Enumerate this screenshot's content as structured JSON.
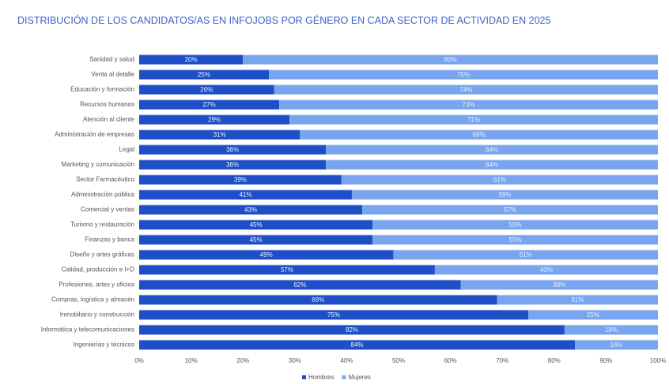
{
  "chart_data": {
    "type": "stacked_bar_horizontal",
    "title": "DISTRIBUCIÓN DE LOS CANDIDATOS/AS EN INFOJOBS POR GÉNERO EN CADA SECTOR DE ACTIVIDAD EN 2025",
    "categories": [
      "Sanidad y salud",
      "Venta al detalle",
      "Educación y formación",
      "Recursos humanos",
      "Atención al cliente",
      "Administración de empresas",
      "Legal",
      "Marketing y comunicación",
      "Sector Farmacéutico",
      "Administración pública",
      "Comercial y ventas",
      "Turismo y restauración",
      "Finanzas y banca",
      "Diseño y artes gráficas",
      "Calidad, producción e I+D",
      "Profesiones, artes y oficios",
      "Compras, logística y almacén",
      "Inmobiliario y construcción",
      "Informática y telecomunicaciones",
      "Ingenierías y técnicos"
    ],
    "series": [
      {
        "name": "Hombres",
        "color": "#1f4fc6",
        "values": [
          20,
          25,
          26,
          27,
          29,
          31,
          36,
          36,
          39,
          41,
          43,
          45,
          45,
          49,
          57,
          62,
          69,
          75,
          82,
          84
        ],
        "value_labels": [
          "20%",
          "25%",
          "26%",
          "27%",
          "29%",
          "31%",
          "36%",
          "36%",
          "39%",
          "41%",
          "43%",
          "45%",
          "45%",
          "49%",
          "57%",
          "62%",
          "69%",
          "75%",
          "82%",
          "84%"
        ]
      },
      {
        "name": "Mujeres",
        "color": "#78a5ee",
        "values": [
          80,
          75,
          74,
          73,
          71,
          69,
          64,
          64,
          61,
          59,
          57,
          55,
          55,
          51,
          43,
          38,
          31,
          25,
          18,
          16
        ],
        "value_labels": [
          "80%",
          "75%",
          "74%",
          "73%",
          "71%",
          "69%",
          "64%",
          "64%",
          "61%",
          "59%",
          "57%",
          "55%",
          "55%",
          "51%",
          "43%",
          "38%",
          "31%",
          "25%",
          "18%",
          "16%"
        ]
      }
    ],
    "xlim": [
      0,
      100
    ],
    "xticks": [
      {
        "value": 0,
        "label": "0%"
      },
      {
        "value": 10,
        "label": "10%"
      },
      {
        "value": 20,
        "label": "20%"
      },
      {
        "value": 30,
        "label": "30%"
      },
      {
        "value": 40,
        "label": "40%"
      },
      {
        "value": 50,
        "label": "50%"
      },
      {
        "value": 60,
        "label": "60%"
      },
      {
        "value": 70,
        "label": "70%"
      },
      {
        "value": 80,
        "label": "80%"
      },
      {
        "value": 90,
        "label": "90%"
      },
      {
        "value": 100,
        "label": "100%"
      }
    ],
    "legend": "bottom"
  }
}
